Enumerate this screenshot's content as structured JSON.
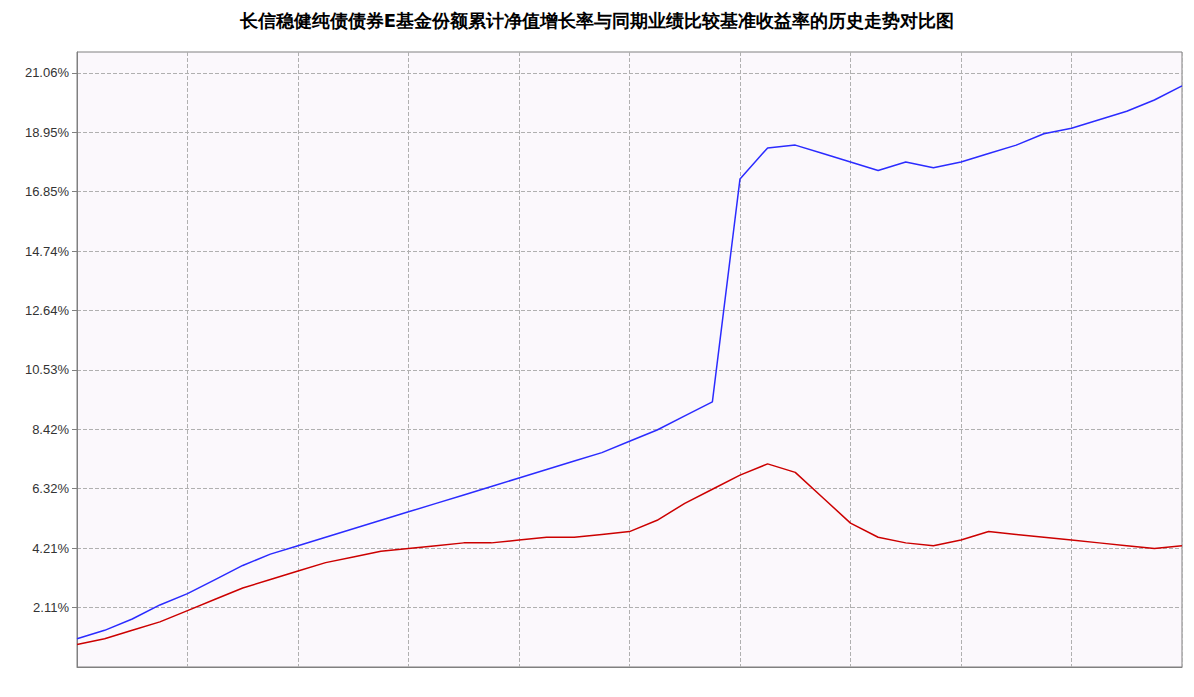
{
  "chart_data": {
    "type": "line",
    "title": "长信稳健纯债债券E基金份额累计净值增长率与同期业绩比较基准收益率的历史走势对比图",
    "series": [
      {
        "color": "#2b2bff",
        "values": [
          1.0,
          1.3,
          1.7,
          2.2,
          2.6,
          3.1,
          3.6,
          4.0,
          4.3,
          4.6,
          4.9,
          5.2,
          5.5,
          5.8,
          6.1,
          6.4,
          6.7,
          7.0,
          7.3,
          7.6,
          8.0,
          8.4,
          8.9,
          9.4,
          17.3,
          18.4,
          18.5,
          18.2,
          17.9,
          17.6,
          17.9,
          17.7,
          17.9,
          18.2,
          18.5,
          18.9,
          19.1,
          19.4,
          19.7,
          20.1,
          20.6
        ]
      },
      {
        "color": "#cc0000",
        "values": [
          0.8,
          1.0,
          1.3,
          1.6,
          2.0,
          2.4,
          2.8,
          3.1,
          3.4,
          3.7,
          3.9,
          4.1,
          4.2,
          4.3,
          4.4,
          4.4,
          4.5,
          4.6,
          4.6,
          4.7,
          4.8,
          5.2,
          5.8,
          6.3,
          6.8,
          7.2,
          6.9,
          6.0,
          5.1,
          4.6,
          4.4,
          4.3,
          4.5,
          4.8,
          4.7,
          4.6,
          4.5,
          4.4,
          4.3,
          4.2,
          4.3
        ]
      }
    ],
    "ylim": [
      0,
      21.8
    ],
    "yticks": [
      {
        "value": 2.11,
        "label": "2.11%"
      },
      {
        "value": 4.21,
        "label": "4.21%"
      },
      {
        "value": 6.32,
        "label": "6.32%"
      },
      {
        "value": 8.42,
        "label": "8.42%"
      },
      {
        "value": 10.53,
        "label": "10.53%"
      },
      {
        "value": 12.64,
        "label": "12.64%"
      },
      {
        "value": 14.74,
        "label": "14.74%"
      },
      {
        "value": 16.85,
        "label": "16.85%"
      },
      {
        "value": 18.95,
        "label": "18.95%"
      },
      {
        "value": 21.06,
        "label": "21.06%"
      }
    ],
    "grid": true,
    "tick_labels": "y"
  }
}
